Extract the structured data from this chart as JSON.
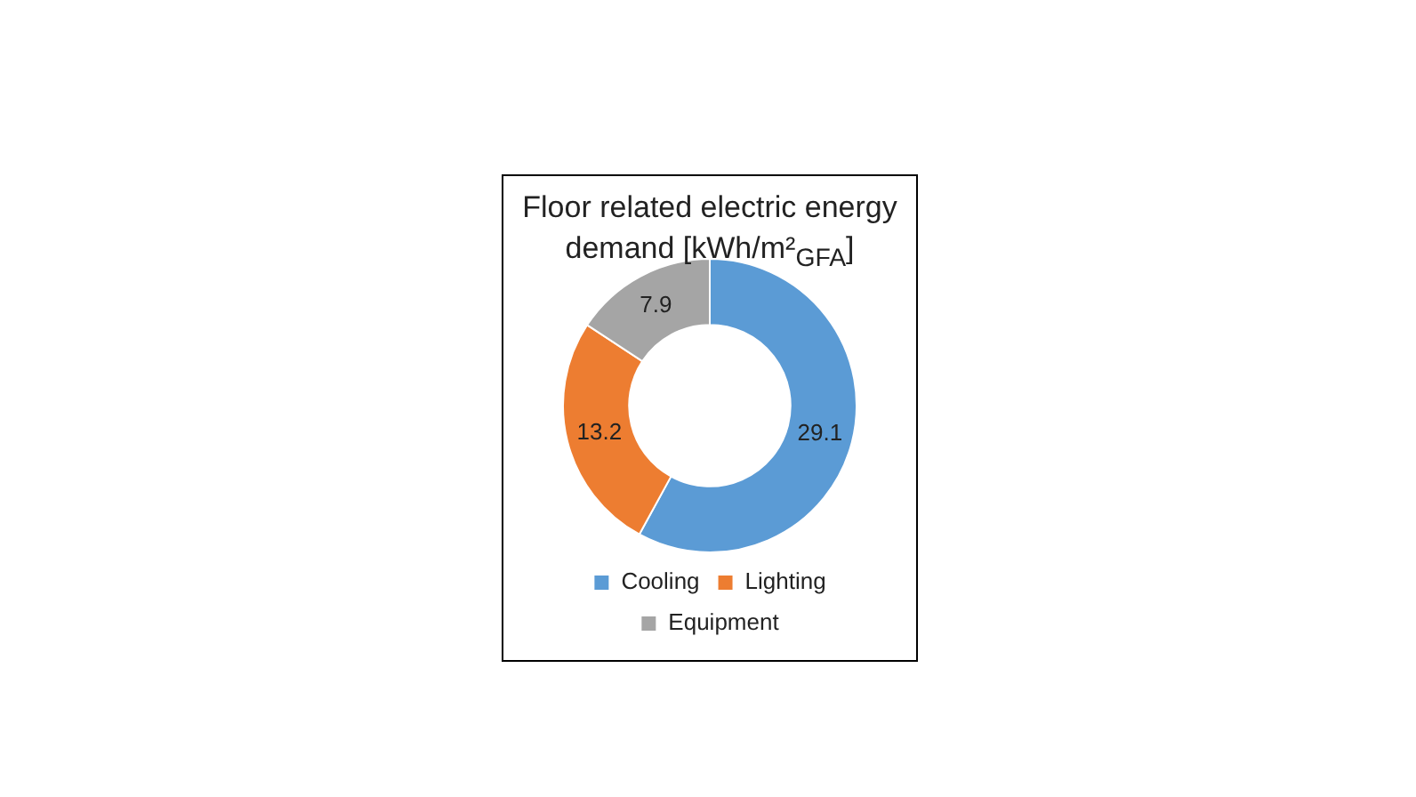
{
  "chart_data": {
    "type": "donut",
    "title": "Floor related electric energy demand [kWh/m²$_{GFA}$]",
    "categories": [
      "Cooling",
      "Lighting",
      "Equipment"
    ],
    "values": [
      29.1,
      13.2,
      7.9
    ],
    "colors": [
      "#5b9bd5",
      "#ed7d31",
      "#a5a5a5"
    ],
    "data_labels": true,
    "legend": "bottom"
  }
}
